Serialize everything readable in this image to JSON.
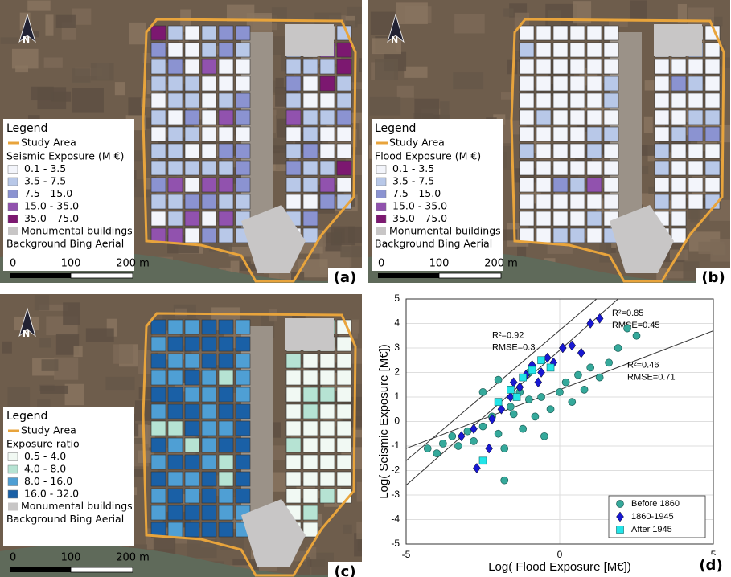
{
  "maps": [
    {
      "panel_label": "(a)",
      "north": "N",
      "legend": {
        "title": "Legend",
        "study_area": "Study Area",
        "class_title": "Seismic Exposure (M €)",
        "classes": [
          {
            "label": "0.1 - 3.5",
            "color": "#f3f5fb"
          },
          {
            "label": "3.5 - 7.5",
            "color": "#b8c8e8"
          },
          {
            "label": "7.5 - 15.0",
            "color": "#8b93d1"
          },
          {
            "label": "15.0 - 35.0",
            "color": "#9152ae"
          },
          {
            "label": "35.0 - 75.0",
            "color": "#7c1870"
          }
        ],
        "monumental": "Monumental buildings",
        "background": "Background Bing Aerial"
      },
      "scale": [
        "0",
        "100",
        "200 m"
      ]
    },
    {
      "panel_label": "(b)",
      "north": "N",
      "legend": {
        "title": "Legend",
        "study_area": "Study Area",
        "class_title": "Flood Exposure (M €)",
        "classes": [
          {
            "label": "0.1 - 3.5",
            "color": "#f3f5fb"
          },
          {
            "label": "3.5 - 7.5",
            "color": "#b8c8e8"
          },
          {
            "label": "7.5 - 15.0",
            "color": "#8b93d1"
          },
          {
            "label": "15.0 - 35.0",
            "color": "#9152ae"
          },
          {
            "label": "35.0 - 75.0",
            "color": "#7c1870"
          }
        ],
        "monumental": "Monumental buildings",
        "background": "Background Bing Aerial"
      },
      "scale": [
        "0",
        "100",
        "200 m"
      ]
    },
    {
      "panel_label": "(c)",
      "north": "N",
      "legend": {
        "title": "Legend",
        "study_area": "Study Area",
        "class_title": "Exposure ratio",
        "classes": [
          {
            "label": "0.5 - 4.0",
            "color": "#f1f9f3"
          },
          {
            "label": "4.0 - 8.0",
            "color": "#b6e3d3"
          },
          {
            "label": "8.0 - 16.0",
            "color": "#4f9fd4"
          },
          {
            "label": "16.0 - 32.0",
            "color": "#1a60a6"
          }
        ],
        "monumental": "Monumental buildings",
        "background": "Background Bing Aerial"
      },
      "scale": [
        "0",
        "100",
        "200 m"
      ]
    }
  ],
  "chart_data": {
    "type": "scatter",
    "panel_label": "(d)",
    "x_label": "Log( Flood Exposure [M€])",
    "y_label": "Log( Seismic Exposure [M€])",
    "xlim": [
      -5,
      5
    ],
    "xticks": [
      -5,
      0,
      5
    ],
    "ylim": [
      -5,
      5
    ],
    "yticks": [
      -5,
      -4,
      -3,
      -2,
      -1,
      0,
      1,
      2,
      3,
      4,
      5
    ],
    "grid": true,
    "legend": "lower right",
    "series": [
      {
        "name": "Before 1860",
        "color": "#35a99b",
        "marker": "circle",
        "x": [
          -4.3,
          -4,
          -3.8,
          -3.5,
          -3.3,
          -3,
          -2.8,
          -2.5,
          -2.2,
          -2,
          -1.8,
          -1.6,
          -1.5,
          -1.3,
          -1.2,
          -1,
          -0.8,
          -0.6,
          -0.5,
          -0.3,
          0,
          0.2,
          0.4,
          0.6,
          0.8,
          1,
          1.3,
          1.6,
          1.9,
          2.2,
          2.5,
          -1.8,
          -2.5,
          -2,
          -1
        ],
        "values": [
          -1.1,
          -1.3,
          -0.9,
          -0.6,
          -1,
          -0.4,
          -0.8,
          -0.2,
          0.2,
          -0.5,
          -1.1,
          0.6,
          0.3,
          1.2,
          -0.3,
          0.9,
          0.2,
          1,
          -0.6,
          0.5,
          1.2,
          1.6,
          0.8,
          1.9,
          1.3,
          2.2,
          1.8,
          2.4,
          3,
          3.8,
          3.5,
          -2.4,
          1.2,
          1.7,
          2
        ]
      },
      {
        "name": "1860-1945",
        "color": "#1818d2",
        "marker": "diamond",
        "x": [
          -2.7,
          -2.3,
          -2.8,
          -2.2,
          -1.9,
          -1.6,
          -1.3,
          -1.1,
          -0.9,
          -0.6,
          -0.4,
          -0.2,
          0.1,
          0.4,
          0.7,
          1,
          1.3,
          -1.5,
          -3.2,
          -0.7
        ],
        "values": [
          -1.9,
          -1.1,
          -0.3,
          0.1,
          0.5,
          1,
          1.4,
          1.9,
          2.3,
          2,
          2.6,
          2.4,
          3,
          3.1,
          2.8,
          4,
          4.2,
          1.6,
          -0.6,
          1.6
        ]
      },
      {
        "name": "After 1945",
        "color": "#22e4e8",
        "marker": "square",
        "x": [
          -2.5,
          -2,
          -1.6,
          -1.2,
          -0.9,
          -0.6,
          -0.3,
          -1.4
        ],
        "values": [
          -1.6,
          0.8,
          1.3,
          1.8,
          2.1,
          2.5,
          2.2,
          1
        ]
      }
    ],
    "fits": [
      {
        "x": [
          -5,
          1.2
        ],
        "y": [
          -1.6,
          5
        ],
        "r2": "R²=0.92",
        "rmse": "RMSE=0.3"
      },
      {
        "x": [
          -5,
          1.9
        ],
        "y": [
          -2.6,
          5
        ],
        "r2": "R²=0.85",
        "rmse": "RMSE=0.45"
      },
      {
        "x": [
          -5,
          5
        ],
        "y": [
          -1.1,
          3.7
        ],
        "r2": "R²=0.46",
        "rmse": "RMSE=0.71"
      }
    ]
  }
}
